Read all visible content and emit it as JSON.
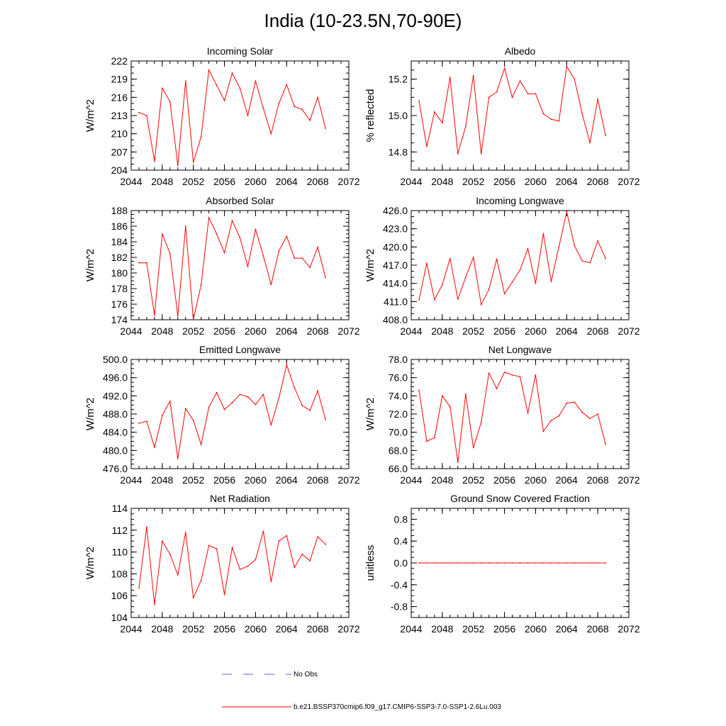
{
  "figure_title": "India (10-23.5N,70-90E)",
  "legend": [
    {
      "label": "No Obs",
      "color": "#5a6bd1",
      "style": "dashed"
    },
    {
      "label": "b.e21.BSSP370cmip6.f09_g17.CMIP6-SSP3-7.0-SSP1-2.6Lu.003",
      "color": "#ff0000",
      "style": "solid"
    }
  ],
  "chart_data": [
    {
      "type": "line",
      "title": "Incoming Solar",
      "xlabel": "",
      "ylabel": "W/m^2",
      "xlim": [
        2044,
        2072
      ],
      "ylim": [
        204,
        222
      ],
      "xticks": [
        2044,
        2048,
        2052,
        2056,
        2060,
        2064,
        2068,
        2072
      ],
      "xminor": 1,
      "yticks": [
        204,
        207,
        210,
        213,
        216,
        219,
        222
      ],
      "yminor": 1,
      "decimals": 0,
      "x": [
        2045,
        2046,
        2047,
        2048,
        2049,
        2050,
        2051,
        2052,
        2053,
        2054,
        2055,
        2056,
        2057,
        2058,
        2059,
        2060,
        2061,
        2062,
        2063,
        2064,
        2065,
        2066,
        2067,
        2068,
        2069
      ],
      "series": [
        {
          "color": "#ff0000",
          "values": [
            213.5,
            213.0,
            205.5,
            217.5,
            215.3,
            204.8,
            218.7,
            205.3,
            209.5,
            220.5,
            218.0,
            215.5,
            220.0,
            217.5,
            213.0,
            218.7,
            214.2,
            210.0,
            215.0,
            218.1,
            214.5,
            214.0,
            212.2,
            216.0,
            210.9
          ]
        }
      ]
    },
    {
      "type": "line",
      "title": "Albedo",
      "xlabel": "",
      "ylabel": "% reflected",
      "xlim": [
        2044,
        2072
      ],
      "ylim": [
        14.7,
        15.3
      ],
      "xticks": [
        2044,
        2048,
        2052,
        2056,
        2060,
        2064,
        2068,
        2072
      ],
      "xminor": 1,
      "yticks": [
        14.8,
        15.0,
        15.2
      ],
      "yminor": 0.05,
      "decimals": 1,
      "x": [
        2045,
        2046,
        2047,
        2048,
        2049,
        2050,
        2051,
        2052,
        2053,
        2054,
        2055,
        2056,
        2057,
        2058,
        2059,
        2060,
        2061,
        2062,
        2063,
        2064,
        2065,
        2066,
        2067,
        2068,
        2069
      ],
      "series": [
        {
          "color": "#ff0000",
          "values": [
            15.08,
            14.83,
            15.02,
            14.96,
            15.21,
            14.79,
            14.94,
            15.22,
            14.79,
            15.1,
            15.13,
            15.26,
            15.1,
            15.19,
            15.12,
            15.12,
            15.01,
            14.98,
            14.97,
            15.27,
            15.2,
            15.01,
            14.85,
            15.09,
            14.89
          ]
        }
      ]
    },
    {
      "type": "line",
      "title": "Absorbed Solar",
      "xlabel": "",
      "ylabel": "W/m^2",
      "xlim": [
        2044,
        2072
      ],
      "ylim": [
        174,
        188
      ],
      "xticks": [
        2044,
        2048,
        2052,
        2056,
        2060,
        2064,
        2068,
        2072
      ],
      "xminor": 1,
      "yticks": [
        174,
        176,
        178,
        180,
        182,
        184,
        186,
        188
      ],
      "yminor": 0.5,
      "decimals": 0,
      "x": [
        2045,
        2046,
        2047,
        2048,
        2049,
        2050,
        2051,
        2052,
        2053,
        2054,
        2055,
        2056,
        2057,
        2058,
        2059,
        2060,
        2061,
        2062,
        2063,
        2064,
        2065,
        2066,
        2067,
        2068,
        2069
      ],
      "series": [
        {
          "color": "#ff0000",
          "values": [
            181.3,
            181.3,
            174.6,
            185.0,
            182.5,
            174.5,
            186.0,
            174.0,
            178.5,
            187.1,
            185.0,
            182.6,
            186.7,
            184.5,
            180.8,
            185.6,
            182.2,
            178.5,
            182.8,
            184.7,
            181.9,
            181.9,
            180.7,
            183.3,
            179.4
          ]
        }
      ]
    },
    {
      "type": "line",
      "title": "Incoming Longwave",
      "xlabel": "",
      "ylabel": "W/m^2",
      "xlim": [
        2044,
        2072
      ],
      "ylim": [
        408,
        426
      ],
      "xticks": [
        2044,
        2048,
        2052,
        2056,
        2060,
        2064,
        2068,
        2072
      ],
      "xminor": 1,
      "yticks": [
        408,
        411,
        414,
        417,
        420,
        423,
        426
      ],
      "yminor": 1,
      "decimals": 1,
      "x": [
        2045,
        2046,
        2047,
        2048,
        2049,
        2050,
        2051,
        2052,
        2053,
        2054,
        2055,
        2056,
        2057,
        2058,
        2059,
        2060,
        2061,
        2062,
        2063,
        2064,
        2065,
        2066,
        2067,
        2068,
        2069
      ],
      "series": [
        {
          "color": "#ff0000",
          "values": [
            411.3,
            417.3,
            411.3,
            413.8,
            418.1,
            411.4,
            415.0,
            418.3,
            410.5,
            413.0,
            418.0,
            412.3,
            414.2,
            416.2,
            419.7,
            414.0,
            422.2,
            414.3,
            420.0,
            425.8,
            420.2,
            417.7,
            417.4,
            421.0,
            418.1
          ]
        }
      ]
    },
    {
      "type": "line",
      "title": "Emitted Longwave",
      "xlabel": "",
      "ylabel": "W/m^2",
      "xlim": [
        2044,
        2072
      ],
      "ylim": [
        476,
        500
      ],
      "xticks": [
        2044,
        2048,
        2052,
        2056,
        2060,
        2064,
        2068,
        2072
      ],
      "xminor": 1,
      "yticks": [
        476,
        480,
        484,
        488,
        492,
        496,
        500
      ],
      "yminor": 1,
      "decimals": 1,
      "x": [
        2045,
        2046,
        2047,
        2048,
        2049,
        2050,
        2051,
        2052,
        2053,
        2054,
        2055,
        2056,
        2057,
        2058,
        2059,
        2060,
        2061,
        2062,
        2063,
        2064,
        2065,
        2066,
        2067,
        2068,
        2069
      ],
      "series": [
        {
          "color": "#ff0000",
          "values": [
            486.0,
            486.4,
            480.7,
            487.7,
            490.8,
            478.2,
            489.2,
            486.6,
            481.3,
            489.5,
            492.7,
            489.0,
            490.5,
            492.3,
            491.8,
            490.1,
            492.3,
            485.6,
            491.5,
            498.8,
            493.8,
            489.9,
            488.8,
            493.1,
            486.8
          ]
        }
      ]
    },
    {
      "type": "line",
      "title": "Net Longwave",
      "xlabel": "",
      "ylabel": "W/m^2",
      "xlim": [
        2044,
        2072
      ],
      "ylim": [
        66,
        78
      ],
      "xticks": [
        2044,
        2048,
        2052,
        2056,
        2060,
        2064,
        2068,
        2072
      ],
      "xminor": 1,
      "yticks": [
        66,
        68,
        70,
        72,
        74,
        76,
        78
      ],
      "yminor": 0.5,
      "decimals": 1,
      "x": [
        2045,
        2046,
        2047,
        2048,
        2049,
        2050,
        2051,
        2052,
        2053,
        2054,
        2055,
        2056,
        2057,
        2058,
        2059,
        2060,
        2061,
        2062,
        2063,
        2064,
        2065,
        2066,
        2067,
        2068,
        2069
      ],
      "series": [
        {
          "color": "#ff0000",
          "values": [
            74.6,
            69.0,
            69.4,
            74.0,
            72.8,
            66.7,
            74.2,
            68.3,
            71.1,
            76.5,
            74.8,
            76.6,
            76.3,
            76.1,
            72.1,
            76.3,
            70.1,
            71.3,
            71.8,
            73.2,
            73.3,
            72.2,
            71.5,
            72.0,
            68.7
          ]
        }
      ]
    },
    {
      "type": "line",
      "title": "Net Radiation",
      "xlabel": "",
      "ylabel": "W/m^2",
      "xlim": [
        2044,
        2072
      ],
      "ylim": [
        104,
        114
      ],
      "xticks": [
        2044,
        2048,
        2052,
        2056,
        2060,
        2064,
        2068,
        2072
      ],
      "xminor": 1,
      "yticks": [
        104,
        106,
        108,
        110,
        112,
        114
      ],
      "yminor": 0.5,
      "decimals": 0,
      "x": [
        2045,
        2046,
        2047,
        2048,
        2049,
        2050,
        2051,
        2052,
        2053,
        2054,
        2055,
        2056,
        2057,
        2058,
        2059,
        2060,
        2061,
        2062,
        2063,
        2064,
        2065,
        2066,
        2067,
        2068,
        2069
      ],
      "series": [
        {
          "color": "#ff0000",
          "values": [
            106.7,
            112.3,
            105.2,
            111.0,
            109.8,
            107.9,
            111.8,
            105.8,
            107.4,
            110.6,
            110.3,
            106.1,
            110.4,
            108.4,
            108.7,
            109.3,
            111.9,
            107.3,
            111.0,
            111.5,
            108.6,
            109.8,
            109.2,
            111.4,
            110.7
          ]
        }
      ]
    },
    {
      "type": "line",
      "title": "Ground Snow Covered Fraction",
      "xlabel": "",
      "ylabel": "unitless",
      "xlim": [
        2044,
        2072
      ],
      "ylim": [
        -1.0,
        1.0
      ],
      "xticks": [
        2044,
        2048,
        2052,
        2056,
        2060,
        2064,
        2068,
        2072
      ],
      "xminor": 1,
      "yticks": [
        -0.8,
        -0.4,
        0.0,
        0.4,
        0.8
      ],
      "yminor": 0.1,
      "decimals": 1,
      "x": [
        2045,
        2046,
        2047,
        2048,
        2049,
        2050,
        2051,
        2052,
        2053,
        2054,
        2055,
        2056,
        2057,
        2058,
        2059,
        2060,
        2061,
        2062,
        2063,
        2064,
        2065,
        2066,
        2067,
        2068,
        2069
      ],
      "series": [
        {
          "color": "#ff0000",
          "values": [
            0,
            0,
            0,
            0,
            0,
            0,
            0,
            0,
            0,
            0,
            0,
            0,
            0,
            0,
            0,
            0,
            0,
            0,
            0,
            0,
            0,
            0,
            0,
            0,
            0
          ]
        }
      ]
    }
  ]
}
